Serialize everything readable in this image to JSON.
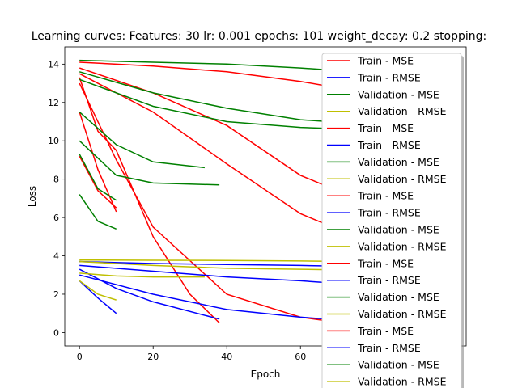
{
  "chart_data": {
    "type": "line",
    "title": "Learning curves: Features: 30 lr: 0.001 epochs: 101 weight_decay: 0.2 stopping:",
    "xlabel": "Epoch",
    "ylabel": "Loss",
    "xlim": [
      -4,
      105
    ],
    "ylim": [
      -0.7,
      14.9
    ],
    "x_ticks": [
      0,
      20,
      40,
      60
    ],
    "y_ticks": [
      0,
      2,
      4,
      6,
      8,
      10,
      12,
      14
    ],
    "grid": false,
    "legend_placement": "right",
    "colors": {
      "Train - MSE": "#ff0000",
      "Train - RMSE": "#0000ff",
      "Validation - MSE": "#008000",
      "Validation - RMSE": "#bfbf00"
    },
    "legend": [
      "Train - MSE",
      "Train - RMSE",
      "Validation - MSE",
      "Validation - RMSE",
      "Train - MSE",
      "Train - RMSE",
      "Validation - MSE",
      "Validation - RMSE",
      "Train - MSE",
      "Train - RMSE",
      "Validation - MSE",
      "Validation - RMSE",
      "Train - MSE",
      "Train - RMSE",
      "Validation - MSE",
      "Validation - RMSE",
      "Train - MSE",
      "Train - RMSE",
      "Validation - MSE",
      "Validation - RMSE"
    ],
    "series": [
      {
        "name": "Train - MSE",
        "values": [
          [
            0,
            14.1
          ],
          [
            20,
            13.9
          ],
          [
            40,
            13.6
          ],
          [
            60,
            13.1
          ],
          [
            75,
            12.6
          ]
        ]
      },
      {
        "name": "Train - MSE",
        "values": [
          [
            0,
            13.8
          ],
          [
            20,
            12.5
          ],
          [
            40,
            10.8
          ],
          [
            60,
            8.2
          ],
          [
            75,
            7.0
          ]
        ]
      },
      {
        "name": "Train - MSE",
        "values": [
          [
            0,
            13.5
          ],
          [
            20,
            11.5
          ],
          [
            40,
            8.8
          ],
          [
            60,
            6.2
          ],
          [
            75,
            5.0
          ]
        ]
      },
      {
        "name": "Train - MSE",
        "values": [
          [
            0,
            11.5
          ],
          [
            5,
            8.5
          ],
          [
            10,
            6.3
          ]
        ]
      },
      {
        "name": "Train - MSE",
        "values": [
          [
            0,
            13.3
          ],
          [
            5,
            10.5
          ],
          [
            10,
            9.5
          ],
          [
            20,
            5.0
          ],
          [
            30,
            2.0
          ],
          [
            38,
            0.5
          ]
        ]
      },
      {
        "name": "Train - MSE",
        "values": [
          [
            0,
            9.2
          ],
          [
            5,
            7.4
          ],
          [
            10,
            6.5
          ]
        ]
      },
      {
        "name": "Train - MSE",
        "values": [
          [
            0,
            13.0
          ],
          [
            10,
            9.0
          ],
          [
            20,
            5.5
          ],
          [
            40,
            2.0
          ],
          [
            60,
            0.8
          ],
          [
            75,
            0.4
          ]
        ]
      },
      {
        "name": "Train - RMSE",
        "values": [
          [
            0,
            3.7
          ],
          [
            20,
            3.6
          ],
          [
            40,
            3.55
          ],
          [
            60,
            3.5
          ],
          [
            75,
            3.45
          ]
        ]
      },
      {
        "name": "Train - RMSE",
        "values": [
          [
            0,
            3.5
          ],
          [
            20,
            3.2
          ],
          [
            40,
            2.9
          ],
          [
            60,
            2.7
          ],
          [
            75,
            2.5
          ]
        ]
      },
      {
        "name": "Train - RMSE",
        "values": [
          [
            0,
            2.7
          ],
          [
            5,
            1.8
          ],
          [
            10,
            1.0
          ]
        ]
      },
      {
        "name": "Train - RMSE",
        "values": [
          [
            0,
            3.3
          ],
          [
            10,
            2.3
          ],
          [
            20,
            1.6
          ],
          [
            38,
            0.7
          ]
        ]
      },
      {
        "name": "Train - RMSE",
        "values": [
          [
            0,
            3.0
          ],
          [
            20,
            2.0
          ],
          [
            40,
            1.2
          ],
          [
            60,
            0.8
          ],
          [
            75,
            0.6
          ]
        ]
      },
      {
        "name": "Validation - MSE",
        "values": [
          [
            0,
            14.2
          ],
          [
            20,
            14.1
          ],
          [
            40,
            14.0
          ],
          [
            60,
            13.8
          ],
          [
            75,
            13.6
          ]
        ]
      },
      {
        "name": "Validation - MSE",
        "values": [
          [
            0,
            13.6
          ],
          [
            20,
            12.5
          ],
          [
            40,
            11.7
          ],
          [
            60,
            11.1
          ],
          [
            75,
            10.9
          ]
        ]
      },
      {
        "name": "Validation - MSE",
        "values": [
          [
            0,
            13.2
          ],
          [
            20,
            11.8
          ],
          [
            40,
            11.0
          ],
          [
            60,
            10.7
          ],
          [
            75,
            10.6
          ]
        ]
      },
      {
        "name": "Validation - MSE",
        "values": [
          [
            0,
            11.5
          ],
          [
            10,
            9.8
          ],
          [
            20,
            8.9
          ],
          [
            34,
            8.6
          ]
        ]
      },
      {
        "name": "Validation - MSE",
        "values": [
          [
            0,
            10.0
          ],
          [
            10,
            8.2
          ],
          [
            20,
            7.8
          ],
          [
            38,
            7.7
          ]
        ]
      },
      {
        "name": "Validation - MSE",
        "values": [
          [
            0,
            9.3
          ],
          [
            5,
            7.5
          ],
          [
            10,
            6.9
          ]
        ]
      },
      {
        "name": "Validation - MSE",
        "values": [
          [
            0,
            7.2
          ],
          [
            5,
            5.8
          ],
          [
            10,
            5.4
          ]
        ]
      },
      {
        "name": "Validation - RMSE",
        "values": [
          [
            0,
            3.78
          ],
          [
            20,
            3.77
          ],
          [
            40,
            3.76
          ],
          [
            60,
            3.73
          ],
          [
            75,
            3.7
          ]
        ]
      },
      {
        "name": "Validation - RMSE",
        "values": [
          [
            0,
            3.7
          ],
          [
            20,
            3.5
          ],
          [
            40,
            3.35
          ],
          [
            60,
            3.3
          ],
          [
            75,
            3.25
          ]
        ]
      },
      {
        "name": "Validation - RMSE",
        "values": [
          [
            0,
            3.1
          ],
          [
            10,
            2.95
          ],
          [
            20,
            2.9
          ],
          [
            34,
            2.9
          ]
        ]
      },
      {
        "name": "Validation - RMSE",
        "values": [
          [
            0,
            2.7
          ],
          [
            5,
            2.0
          ],
          [
            10,
            1.7
          ]
        ]
      }
    ]
  }
}
